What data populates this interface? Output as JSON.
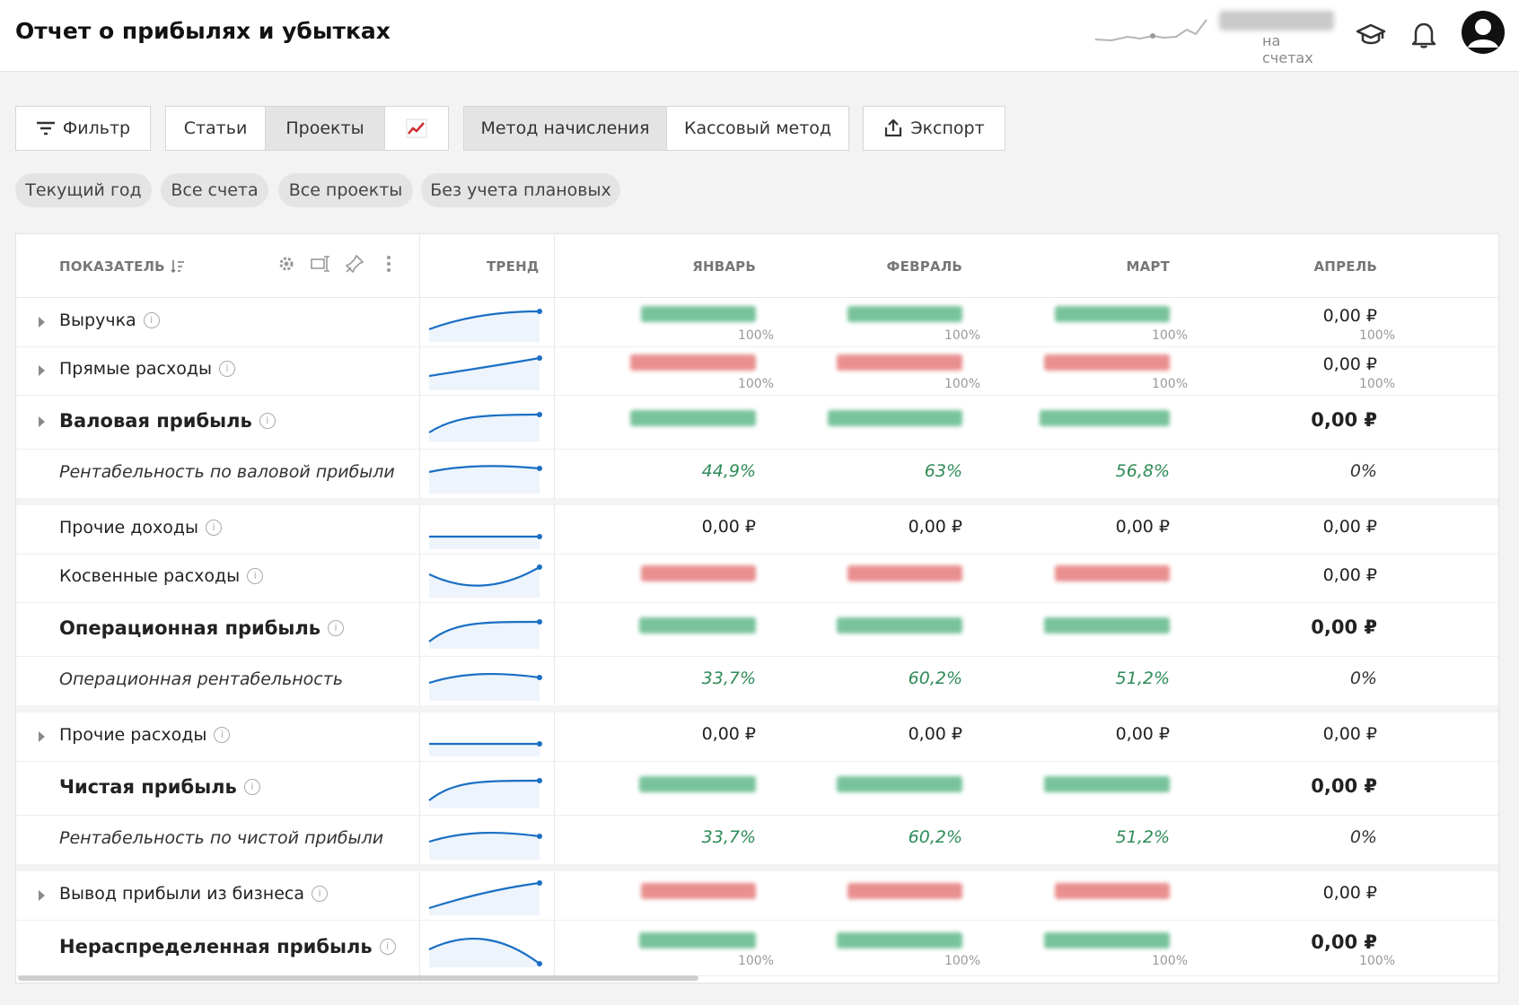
{
  "header": {
    "title": "Отчет о прибылях и убытках",
    "balance_label": "на счетах",
    "icons": [
      "graduation-cap-icon",
      "bell-icon",
      "user-avatar-icon"
    ]
  },
  "toolbar": {
    "filter": "Фильтр",
    "view_articles": "Статьи",
    "view_projects": "Проекты",
    "chart_icon": "chart-icon",
    "method_accrual": "Метод начисления",
    "method_cash": "Кассовый метод",
    "export": "Экспорт"
  },
  "chips": [
    "Текущий год",
    "Все счета",
    "Все проекты",
    "Без учета плановых"
  ],
  "table": {
    "columns": {
      "indicator": "ПОКАЗАТЕЛЬ",
      "trend": "ТРЕНД",
      "months": [
        "ЯНВАРЬ",
        "ФЕВРАЛЬ",
        "МАРТ",
        "АПРЕЛЬ"
      ]
    },
    "rows": [
      {
        "label": "Выручка",
        "cells": [
          "",
          "",
          "",
          "0,00 ₽"
        ],
        "subs": [
          "100%",
          "100%",
          "100%",
          "100%"
        ]
      },
      {
        "label": "Прямые расходы",
        "cells": [
          "",
          "",
          "",
          "0,00 ₽"
        ],
        "subs": [
          "100%",
          "100%",
          "100%",
          "100%"
        ]
      },
      {
        "label": "Валовая прибыль",
        "cells": [
          "",
          "",
          "",
          "0,00 ₽"
        ]
      },
      {
        "label": "Рентабельность по валовой прибыли",
        "cells": [
          "44,9%",
          "63%",
          "56,8%",
          "0%"
        ]
      },
      {
        "label": "Прочие доходы",
        "cells": [
          "0,00 ₽",
          "0,00 ₽",
          "0,00 ₽",
          "0,00 ₽"
        ]
      },
      {
        "label": "Косвенные расходы",
        "cells": [
          "",
          "",
          "",
          "0,00 ₽"
        ]
      },
      {
        "label": "Операционная прибыль",
        "cells": [
          "",
          "",
          "",
          "0,00 ₽"
        ]
      },
      {
        "label": "Операционная рентабельность",
        "cells": [
          "33,7%",
          "60,2%",
          "51,2%",
          "0%"
        ]
      },
      {
        "label": "Прочие расходы",
        "cells": [
          "0,00 ₽",
          "0,00 ₽",
          "0,00 ₽",
          "0,00 ₽"
        ]
      },
      {
        "label": "Чистая прибыль",
        "cells": [
          "",
          "",
          "",
          "0,00 ₽"
        ]
      },
      {
        "label": "Рентабельность по чистой прибыли",
        "cells": [
          "33,7%",
          "60,2%",
          "51,2%",
          "0%"
        ]
      },
      {
        "label": "Вывод прибыли из бизнеса",
        "cells": [
          "",
          "",
          "",
          "0,00 ₽"
        ]
      },
      {
        "label": "Нераспределенная прибыль",
        "cells": [
          "",
          "",
          "",
          "0,00 ₽"
        ],
        "subs": [
          "100%",
          "100%",
          "100%",
          "100%"
        ]
      }
    ]
  },
  "colors": {
    "accent": "#1a6fc4",
    "positive": "#2e8b57",
    "negative": "#e06060"
  }
}
